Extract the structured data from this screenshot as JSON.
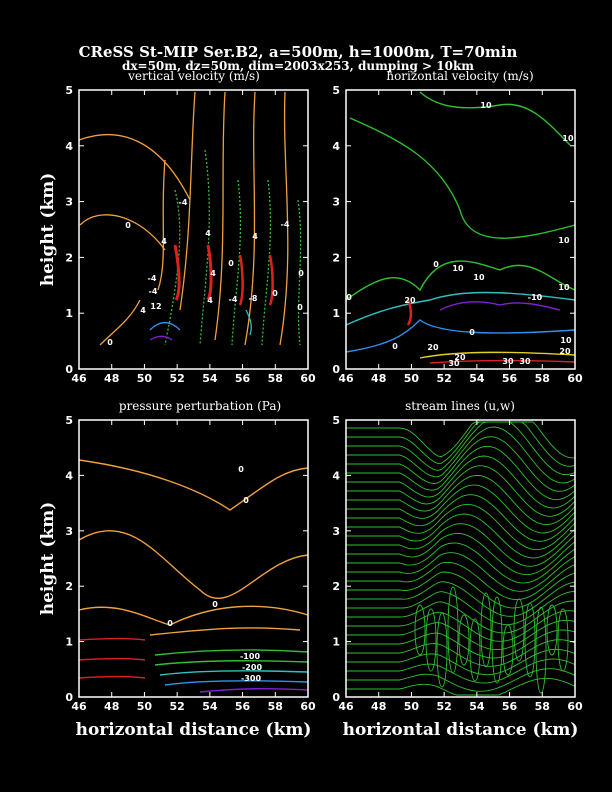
{
  "header": {
    "title": "CReSS St-MIP Ser.B2, a=500m, h=1000m, T=70min",
    "subtitle": "dx=50m, dz=50m, dim=2003x253, dumping > 10km"
  },
  "chart_data": [
    {
      "type": "contour",
      "title": "vertical velocity (m/s)",
      "ylabel": "height (km)",
      "xlim": [
        46,
        60
      ],
      "ylim": [
        0,
        5
      ],
      "xticks": [
        "46",
        "48",
        "50",
        "52",
        "54",
        "56",
        "58",
        "60"
      ],
      "yticks": [
        "0",
        "1",
        "2",
        "3",
        "4",
        "5"
      ],
      "contour_labels": [
        "0",
        "-4",
        "0",
        "4",
        "4",
        "4",
        "-4",
        "0",
        "4",
        "-4",
        "-4",
        "12",
        "4",
        "4",
        "-8",
        "-4",
        "0",
        "0",
        "0"
      ]
    },
    {
      "type": "contour",
      "title": "horizontal velocity (m/s)",
      "xlim": [
        46,
        60
      ],
      "ylim": [
        0,
        5
      ],
      "xticks": [
        "46",
        "48",
        "50",
        "52",
        "54",
        "56",
        "58",
        "60"
      ],
      "yticks": [
        "0",
        "1",
        "2",
        "3",
        "4",
        "5"
      ],
      "contour_labels": [
        "10",
        "10",
        "10",
        "0",
        "10",
        "10",
        "10",
        "10",
        "-10",
        "20",
        "0",
        "20",
        "0",
        "0",
        "20",
        "30",
        "30",
        "30",
        "20"
      ]
    },
    {
      "type": "contour",
      "title": "pressure perturbation (Pa)",
      "xlabel": "horizontal distance (km)",
      "ylabel": "height (km)",
      "xlim": [
        46,
        60
      ],
      "ylim": [
        0,
        5
      ],
      "xticks": [
        "46",
        "48",
        "50",
        "52",
        "54",
        "56",
        "58",
        "60"
      ],
      "yticks": [
        "0",
        "1",
        "2",
        "3",
        "4",
        "5"
      ],
      "contour_labels": [
        "0",
        "0",
        "0",
        "0",
        "-100",
        "-200",
        "-300"
      ]
    },
    {
      "type": "streamlines",
      "title": "stream lines (u,w)",
      "xlabel": "horizontal distance (km)",
      "xlim": [
        46,
        60
      ],
      "ylim": [
        0,
        5
      ],
      "xticks": [
        "46",
        "48",
        "50",
        "52",
        "54",
        "56",
        "58",
        "60"
      ],
      "yticks": [
        "0",
        "1",
        "2",
        "3",
        "4",
        "5"
      ]
    }
  ],
  "colors": {
    "orange": "#f0a040",
    "green": "#30c030",
    "blue": "#3090f0",
    "purple": "#8020d0",
    "red": "#e02020",
    "yellow": "#e0d020"
  }
}
